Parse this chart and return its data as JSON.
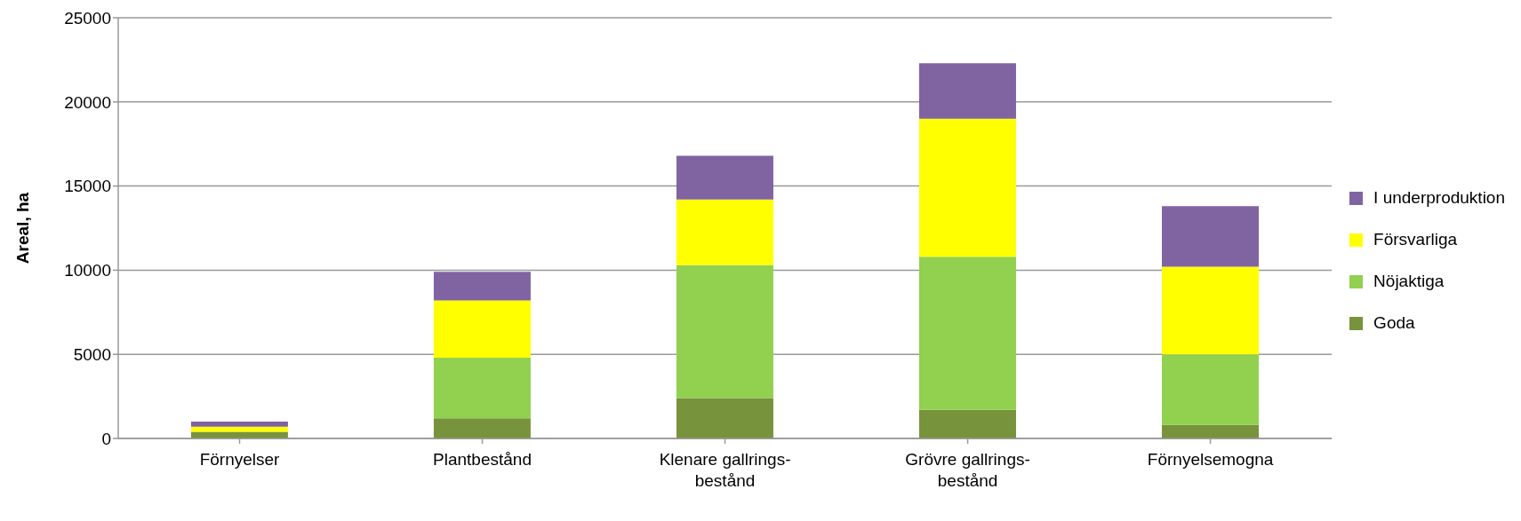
{
  "chart_data": {
    "type": "bar",
    "stacked": true,
    "ylabel": "Areal, ha",
    "categories": [
      "Förnyelser",
      "Plantbestånd",
      "Klenare gallrings-\nbestånd",
      "Grövre gallrings-\nbestånd",
      "Förnyelsemogna"
    ],
    "series": [
      {
        "name": "Goda",
        "color": "#77933c",
        "values": [
          400,
          1200,
          2400,
          1700,
          800
        ]
      },
      {
        "name": "Nöjaktiga",
        "color": "#92d050",
        "values": [
          0,
          3600,
          7900,
          9100,
          4200
        ]
      },
      {
        "name": "Försvarliga",
        "color": "#ffff00",
        "values": [
          300,
          3400,
          3900,
          8200,
          5200
        ]
      },
      {
        "name": "I underproduktion",
        "color": "#8064a2",
        "values": [
          300,
          1700,
          2600,
          3300,
          3600
        ]
      }
    ],
    "ylim": [
      0,
      25000
    ],
    "yticks": [
      0,
      5000,
      10000,
      15000,
      20000,
      25000
    ],
    "grid": "y",
    "legend": "right"
  }
}
